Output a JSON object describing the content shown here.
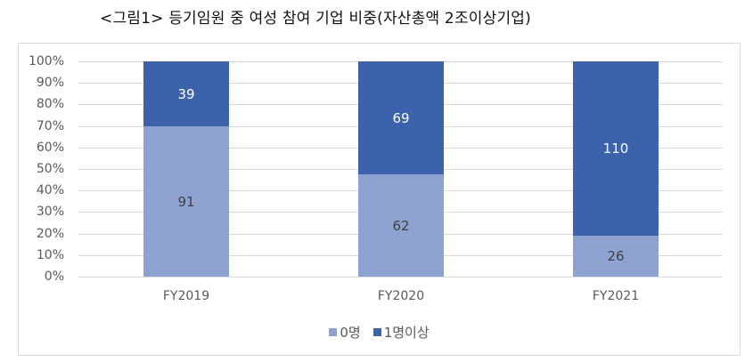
{
  "title": "<그림1> 등기임원 중 여성 참여 기업 비중(자산총액 2조이상기업)",
  "colors": {
    "zero": "#8ea2d2",
    "one_plus": "#3c62ab",
    "grid": "#d9d9d9"
  },
  "y_ticks": [
    "100%",
    "90%",
    "80%",
    "70%",
    "60%",
    "50%",
    "40%",
    "30%",
    "20%",
    "10%",
    "0%"
  ],
  "legend": [
    {
      "label": "0명",
      "color": "#8ea2d2"
    },
    {
      "label": "1명이상",
      "color": "#3c62ab"
    }
  ],
  "chart_data": {
    "type": "bar",
    "stacked": "percent",
    "title": "<그림1> 등기임원 중 여성 참여 기업 비중(자산총액 2조이상기업)",
    "categories": [
      "FY2019",
      "FY2020",
      "FY2021"
    ],
    "series": [
      {
        "name": "0명",
        "values": [
          91,
          62,
          26
        ]
      },
      {
        "name": "1명이상",
        "values": [
          39,
          69,
          110
        ]
      }
    ],
    "xlabel": "",
    "ylabel": "",
    "ylim": [
      0,
      100
    ],
    "yticks": [
      "0%",
      "10%",
      "20%",
      "30%",
      "40%",
      "50%",
      "60%",
      "70%",
      "80%",
      "90%",
      "100%"
    ],
    "grid": true,
    "legend_position": "bottom"
  },
  "bars": [
    {
      "category": "FY2019",
      "zero": "91",
      "one_plus": "39"
    },
    {
      "category": "FY2020",
      "zero": "62",
      "one_plus": "69"
    },
    {
      "category": "FY2021",
      "zero": "26",
      "one_plus": "110"
    }
  ]
}
